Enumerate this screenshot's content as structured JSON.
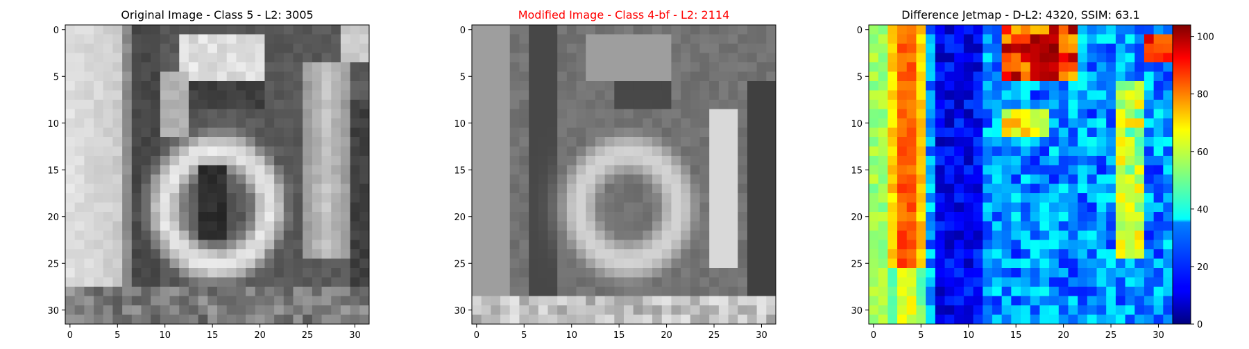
{
  "panels": [
    {
      "title": "Original Image - Class 5 - L2: 3005",
      "title_color": "#000000",
      "colormap": "gray",
      "xticks": [
        0,
        5,
        10,
        15,
        20,
        25,
        30
      ],
      "yticks": [
        0,
        5,
        10,
        15,
        20,
        25,
        30
      ]
    },
    {
      "title": "Modified Image - Class 4-bf - L2: 2114",
      "title_color": "#ff0000",
      "colormap": "gray",
      "xticks": [
        0,
        5,
        10,
        15,
        20,
        25,
        30
      ],
      "yticks": [
        0,
        5,
        10,
        15,
        20,
        25,
        30
      ]
    },
    {
      "title": "Difference Jetmap - D-L2: 4320, SSIM: 63.1",
      "title_color": "#000000",
      "colormap": "jet",
      "xticks": [
        0,
        5,
        10,
        15,
        20,
        25,
        30
      ],
      "yticks": [
        0,
        5,
        10,
        15,
        20,
        25,
        30
      ]
    }
  ],
  "colorbar": {
    "ticks": [
      "0",
      "20",
      "40",
      "60",
      "80",
      "100"
    ],
    "range": [
      0,
      104
    ]
  },
  "chart_data": [
    {
      "type": "heatmap",
      "title": "Original Image - Class 5 - L2: 3005",
      "grid_size": [
        32,
        32
      ],
      "xlim": [
        0,
        31
      ],
      "ylim": [
        31,
        0
      ],
      "colormap": "gray"
    },
    {
      "type": "heatmap",
      "title": "Modified Image - Class 4-bf - L2: 2114",
      "grid_size": [
        32,
        32
      ],
      "xlim": [
        0,
        31
      ],
      "ylim": [
        31,
        0
      ],
      "colormap": "gray"
    },
    {
      "type": "heatmap",
      "title": "Difference Jetmap - D-L2: 4320, SSIM: 63.1",
      "grid_size": [
        32,
        32
      ],
      "xlim": [
        0,
        31
      ],
      "ylim": [
        31,
        0
      ],
      "colormap": "jet",
      "value_range": [
        0,
        104
      ]
    }
  ]
}
